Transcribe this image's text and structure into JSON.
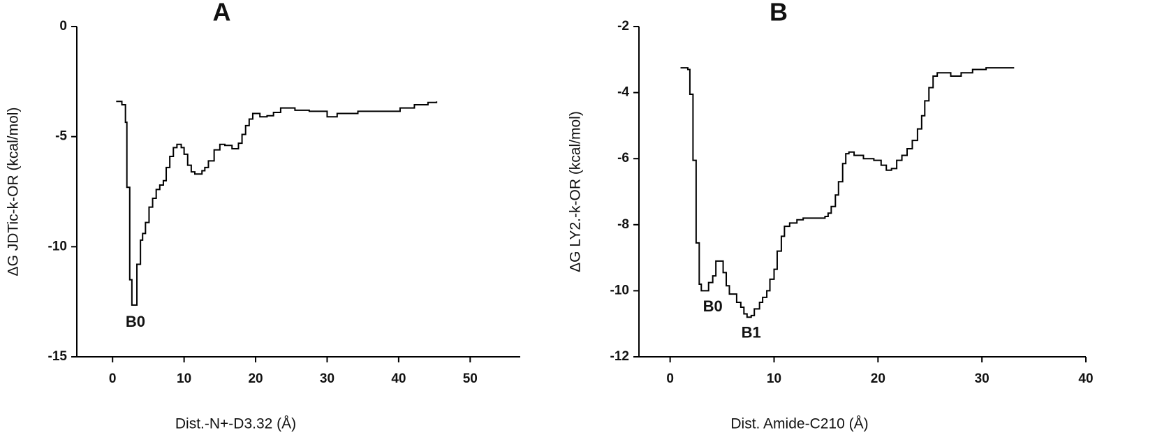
{
  "chart_data": [
    {
      "type": "line",
      "title": "A",
      "xlabel": "Dist.-N+-D3.32 (Å)",
      "ylabel": "ΔG JDTic-k-OR (kcal/mol)",
      "drawstyle": "steps-post",
      "color": "#000000",
      "xlim": [
        -5,
        57
      ],
      "xticks": [
        0,
        10,
        20,
        30,
        40,
        50
      ],
      "ylim": [
        -15,
        0
      ],
      "yticks": [
        -15,
        -10,
        -5,
        0
      ],
      "x": [
        0.5,
        1.3,
        1.8,
        2.0,
        2.4,
        2.7,
        3.4,
        3.9,
        4.2,
        4.6,
        5.1,
        5.6,
        6.1,
        6.6,
        7.1,
        7.5,
        8.0,
        8.5,
        9.0,
        9.6,
        10.0,
        10.5,
        11.0,
        11.5,
        12.5,
        12.9,
        13.4,
        14.2,
        15.0,
        15.7,
        16.7,
        17.6,
        18.1,
        18.6,
        19.1,
        19.6,
        20.6,
        21.6,
        22.5,
        23.5,
        25.5,
        27.5,
        30.0,
        31.4,
        34.3,
        38.2,
        40.2,
        42.2,
        44.1,
        45.3
      ],
      "values": [
        -3.4,
        -3.55,
        -4.35,
        -7.3,
        -11.5,
        -12.65,
        -10.8,
        -9.7,
        -9.4,
        -8.9,
        -8.2,
        -7.8,
        -7.4,
        -7.2,
        -7.0,
        -6.4,
        -5.9,
        -5.5,
        -5.35,
        -5.5,
        -5.8,
        -6.3,
        -6.6,
        -6.7,
        -6.55,
        -6.4,
        -6.1,
        -5.6,
        -5.35,
        -5.4,
        -5.55,
        -5.3,
        -4.9,
        -4.5,
        -4.2,
        -3.95,
        -4.1,
        -4.05,
        -3.9,
        -3.7,
        -3.8,
        -3.85,
        -4.1,
        -3.95,
        -3.85,
        -3.85,
        -3.7,
        -3.55,
        -3.45,
        -3.4
      ],
      "annotations": [
        {
          "text": "B0",
          "x": 3.2,
          "y": -13.45
        }
      ]
    },
    {
      "type": "line",
      "title": "B",
      "xlabel": "Dist. Amide-C210 (Å)",
      "ylabel": "ΔG LY2.-k-OR (kcal/mol)",
      "drawstyle": "steps-post",
      "color": "#000000",
      "xlim": [
        -3,
        40
      ],
      "xticks": [
        0,
        10,
        20,
        30,
        40
      ],
      "ylim": [
        -12,
        -2
      ],
      "yticks": [
        -12,
        -10,
        -8,
        -6,
        -4,
        -2
      ],
      "x": [
        1.0,
        1.7,
        1.9,
        2.2,
        2.5,
        2.8,
        3.0,
        3.7,
        4.1,
        4.4,
        5.1,
        5.4,
        5.7,
        6.4,
        6.8,
        7.1,
        7.4,
        7.8,
        8.1,
        8.6,
        8.9,
        9.3,
        9.6,
        10.0,
        10.3,
        10.7,
        11.0,
        11.5,
        12.2,
        12.8,
        14.9,
        15.2,
        15.5,
        15.9,
        16.2,
        16.6,
        16.9,
        17.2,
        17.7,
        18.6,
        19.6,
        20.3,
        20.8,
        21.3,
        21.8,
        22.3,
        22.8,
        23.3,
        23.8,
        24.2,
        24.5,
        24.9,
        25.3,
        25.7,
        26.4,
        27.0,
        28.0,
        29.1,
        30.4,
        33.1
      ],
      "values": [
        -3.25,
        -3.3,
        -4.05,
        -6.05,
        -8.55,
        -9.8,
        -10.0,
        -9.75,
        -9.55,
        -9.1,
        -9.45,
        -9.85,
        -10.1,
        -10.35,
        -10.5,
        -10.7,
        -10.8,
        -10.75,
        -10.55,
        -10.35,
        -10.2,
        -10.0,
        -9.65,
        -9.35,
        -8.8,
        -8.35,
        -8.05,
        -7.95,
        -7.85,
        -7.8,
        -7.75,
        -7.65,
        -7.45,
        -7.1,
        -6.7,
        -6.15,
        -5.85,
        -5.8,
        -5.9,
        -6.0,
        -6.05,
        -6.2,
        -6.35,
        -6.3,
        -6.05,
        -5.9,
        -5.7,
        -5.45,
        -5.1,
        -4.7,
        -4.25,
        -3.85,
        -3.5,
        -3.4,
        -3.4,
        -3.5,
        -3.4,
        -3.3,
        -3.25,
        -3.25
      ],
      "annotations": [
        {
          "text": "B0",
          "x": 4.1,
          "y": -10.5
        },
        {
          "text": "B1",
          "x": 7.8,
          "y": -11.3
        }
      ]
    }
  ]
}
